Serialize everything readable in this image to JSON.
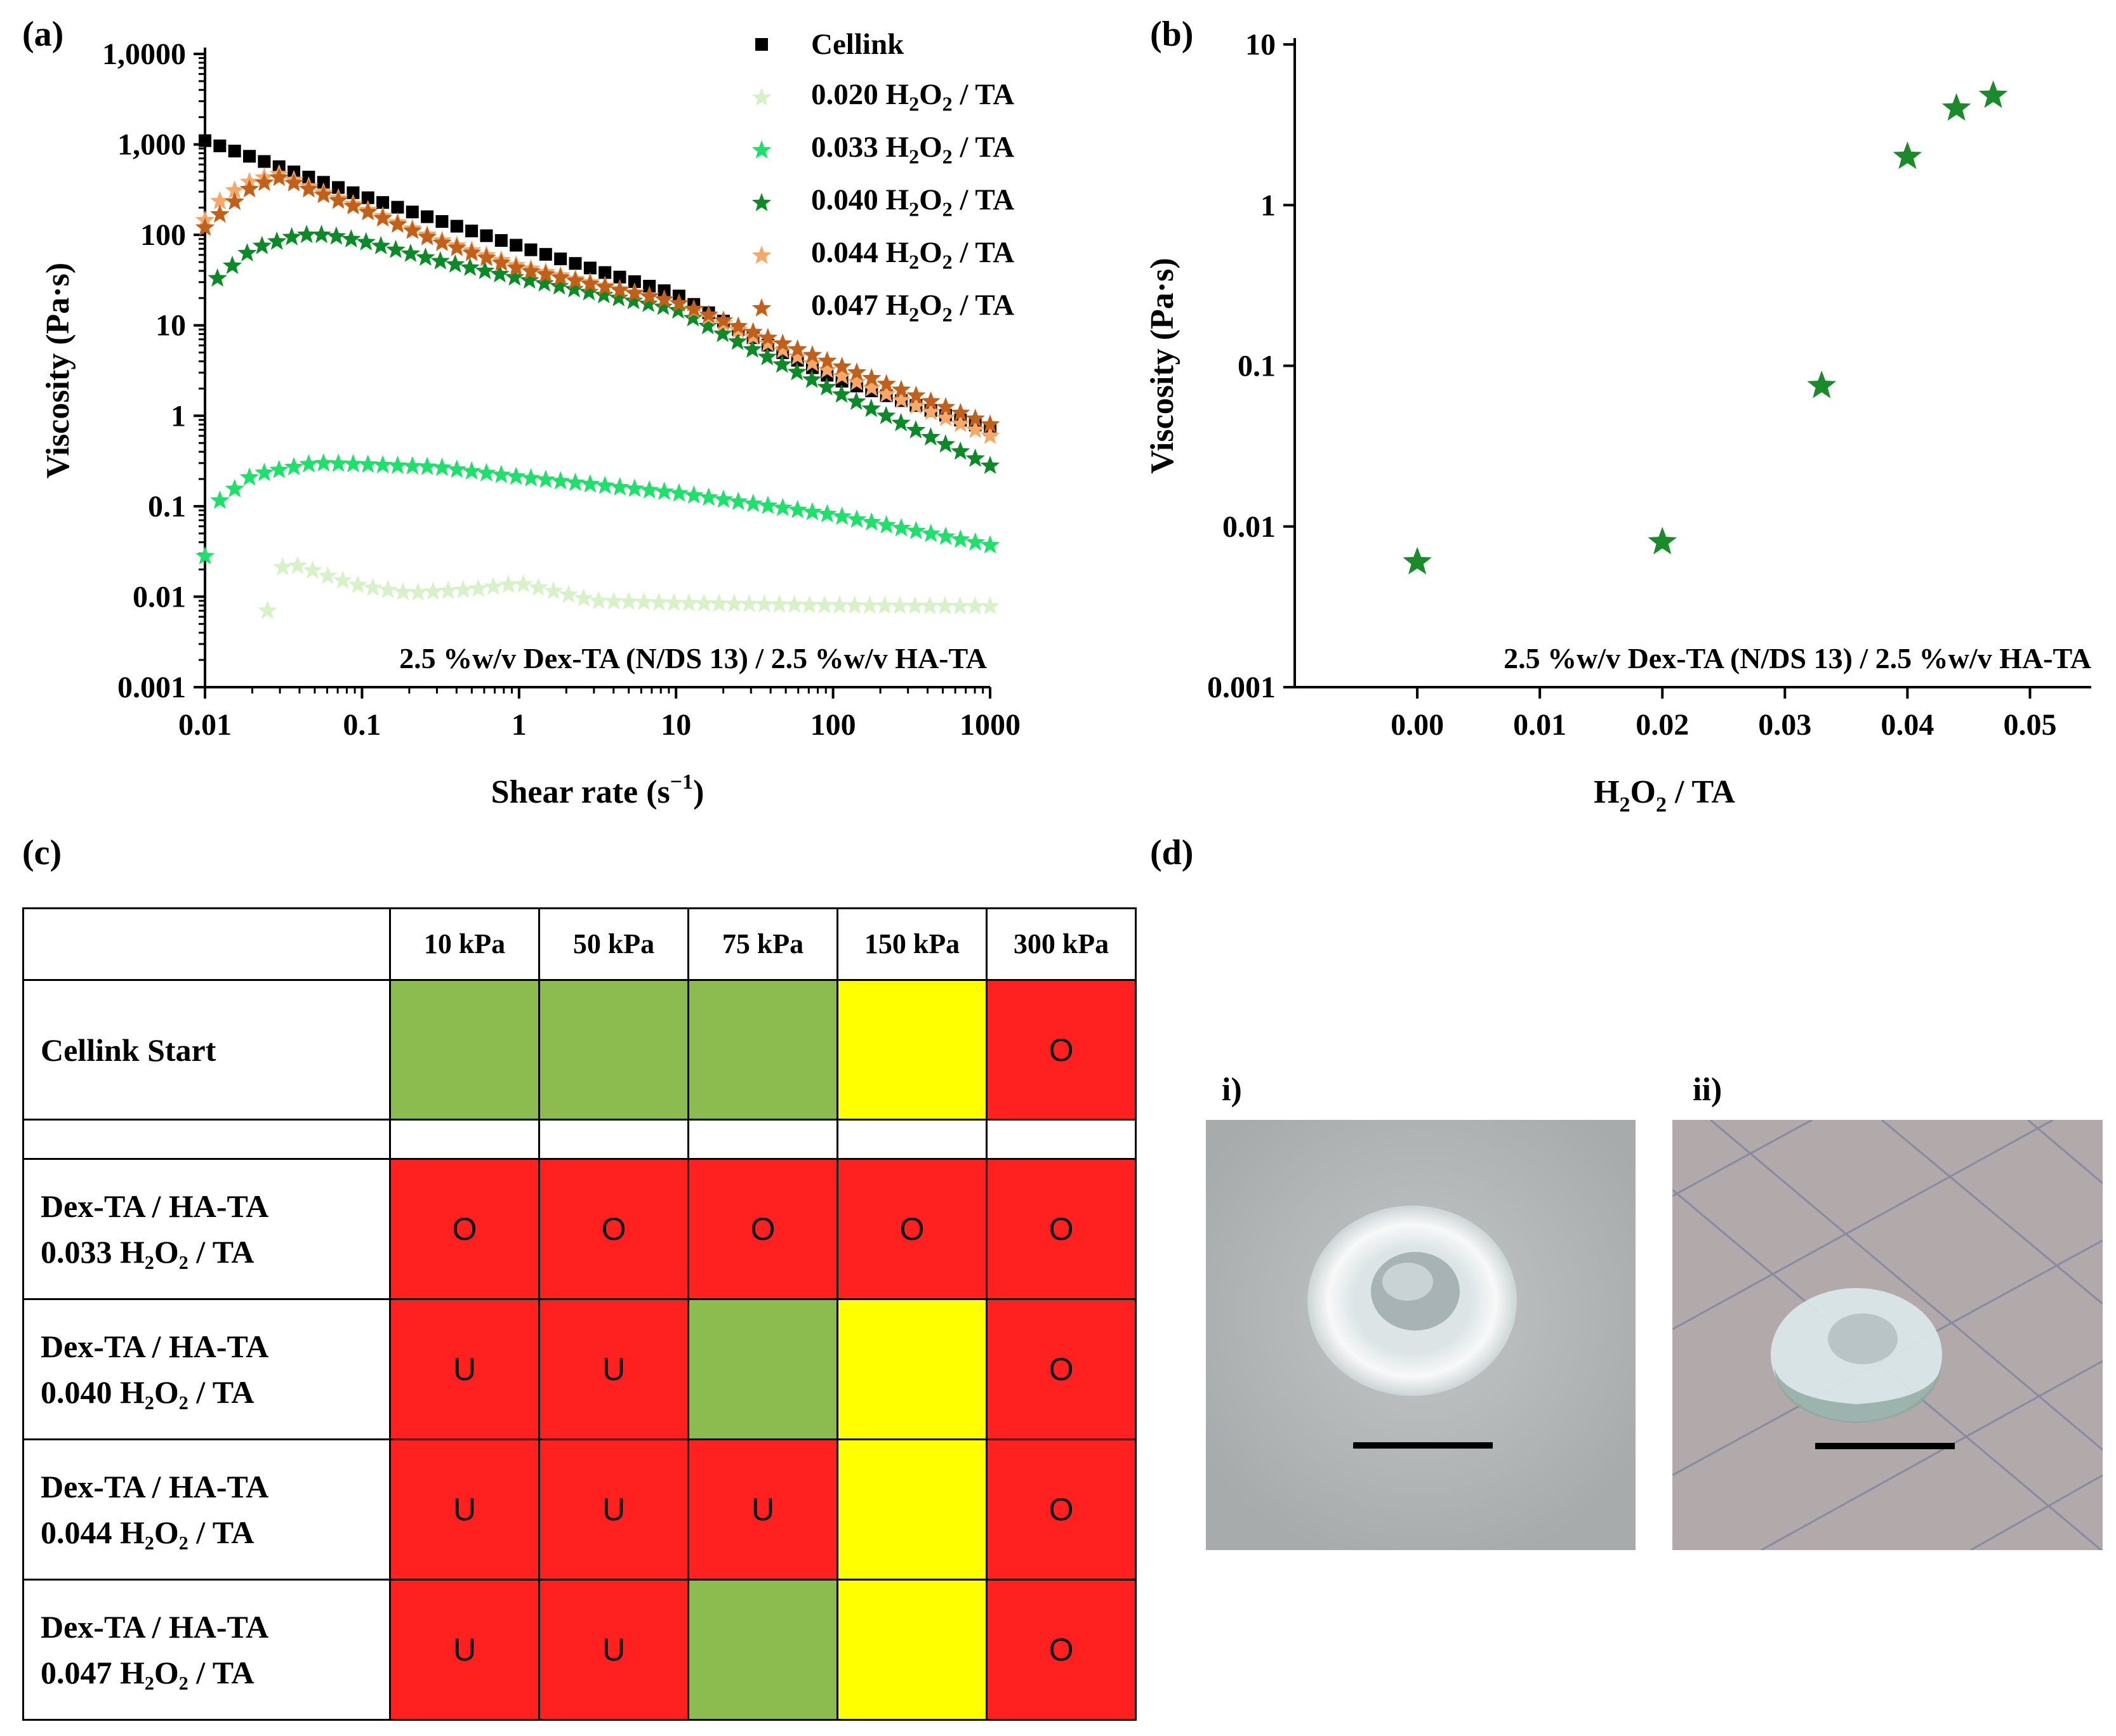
{
  "panels": {
    "a_label": "(a)",
    "b_label": "(b)",
    "c_label": "(c)",
    "d_label": "(d)"
  },
  "chart_data": [
    {
      "type": "scatter",
      "id": "a",
      "xscale": "log",
      "yscale": "log",
      "xlabel": "Shear rate (s⁻¹)",
      "ylabel": "Viscosity (Pa·s)",
      "xlim": [
        0.01,
        1000
      ],
      "ylim": [
        0.001,
        10000
      ],
      "xticks": [
        0.01,
        0.1,
        1,
        10,
        100,
        1000
      ],
      "xtick_labels": [
        "0.01",
        "0.1",
        "1",
        "10",
        "100",
        "1000"
      ],
      "yticks": [
        0.001,
        0.01,
        0.1,
        1,
        10,
        100,
        1000,
        10000
      ],
      "ytick_labels": [
        "0.001",
        "0.01",
        "0.1",
        "1",
        "10",
        "100",
        "1,000",
        "1,0000"
      ],
      "annotation": "2.5 %w/v Dex-TA (N/DS 13) / 2.5 %w/v HA-TA",
      "legend_position": "top-right",
      "series": [
        {
          "name": "Cellink",
          "marker": "square",
          "color": "#000000",
          "points": [
            [
              0.01,
              1100
            ],
            [
              0.1,
              270
            ],
            [
              1,
              75
            ],
            [
              10,
              22
            ],
            [
              30,
              7.5
            ],
            [
              100,
              2.6
            ],
            [
              1000,
              0.7
            ]
          ]
        },
        {
          "name": "0.020 H2O2 / TA",
          "marker": "star",
          "color": "#d8f2c8",
          "points": [
            [
              0.025,
              0.007
            ],
            [
              0.03,
              0.021
            ],
            [
              0.04,
              0.022
            ],
            [
              0.06,
              0.017
            ],
            [
              0.1,
              0.013
            ],
            [
              0.2,
              0.011
            ],
            [
              0.5,
              0.012
            ],
            [
              1,
              0.014
            ],
            [
              1.5,
              0.012
            ],
            [
              3,
              0.009
            ],
            [
              10,
              0.0085
            ],
            [
              100,
              0.008
            ],
            [
              1000,
              0.0078
            ]
          ]
        },
        {
          "name": "0.033 H2O2 / TA",
          "marker": "star",
          "color": "#1fe06a",
          "points": [
            [
              0.01,
              0.028
            ],
            [
              0.012,
              0.11
            ],
            [
              0.02,
              0.22
            ],
            [
              0.05,
              0.3
            ],
            [
              0.1,
              0.29
            ],
            [
              0.3,
              0.27
            ],
            [
              1,
              0.21
            ],
            [
              10,
              0.14
            ],
            [
              100,
              0.08
            ],
            [
              1000,
              0.037
            ]
          ]
        },
        {
          "name": "0.040 H2O2 / TA",
          "marker": "star",
          "color": "#0d8a28",
          "points": [
            [
              0.012,
              33
            ],
            [
              0.02,
              70
            ],
            [
              0.04,
              100
            ],
            [
              0.06,
              100
            ],
            [
              0.1,
              85
            ],
            [
              0.3,
              52
            ],
            [
              1,
              33
            ],
            [
              10,
              15
            ],
            [
              30,
              5.5
            ],
            [
              100,
              1.9
            ],
            [
              1000,
              0.28
            ]
          ]
        },
        {
          "name": "0.044 H2O2 / TA",
          "marker": "star",
          "color": "#f5a868",
          "points": [
            [
              0.01,
              145
            ],
            [
              0.013,
              260
            ],
            [
              0.02,
              400
            ],
            [
              0.03,
              470
            ],
            [
              0.05,
              320
            ],
            [
              0.1,
              200
            ],
            [
              0.3,
              90
            ],
            [
              1,
              45
            ],
            [
              10,
              18
            ],
            [
              100,
              3
            ],
            [
              1000,
              0.6
            ]
          ]
        },
        {
          "name": "0.047 H2O2 / TA",
          "marker": "star",
          "color": "#c0601a",
          "points": [
            [
              0.01,
              120
            ],
            [
              0.013,
              180
            ],
            [
              0.02,
              340
            ],
            [
              0.03,
              430
            ],
            [
              0.05,
              300
            ],
            [
              0.1,
              190
            ],
            [
              0.3,
              85
            ],
            [
              1,
              42
            ],
            [
              10,
              18
            ],
            [
              100,
              3.8
            ],
            [
              1000,
              0.8
            ]
          ]
        }
      ]
    },
    {
      "type": "scatter",
      "id": "b",
      "xscale": "linear",
      "yscale": "log",
      "xlabel": "H2O2 / TA",
      "ylabel": "Viscosity (Pa·s)",
      "xlim": [
        -0.01,
        0.055
      ],
      "ylim": [
        0.001,
        10
      ],
      "xticks": [
        0.0,
        0.01,
        0.02,
        0.03,
        0.04,
        0.05
      ],
      "xtick_labels": [
        "0.00",
        "0.01",
        "0.02",
        "0.03",
        "0.04",
        "0.05"
      ],
      "yticks": [
        0.001,
        0.01,
        0.1,
        1,
        10
      ],
      "ytick_labels": [
        "0.001",
        "0.01",
        "0.1",
        "1",
        "10"
      ],
      "annotation": "2.5 %w/v Dex-TA (N/DS 13) / 2.5 %w/v HA-TA",
      "series": [
        {
          "name": "viscosity",
          "marker": "star",
          "color": "#1a8a2a",
          "points": [
            [
              0.0,
              0.006
            ],
            [
              0.02,
              0.008
            ],
            [
              0.033,
              0.075
            ],
            [
              0.04,
              2.0
            ],
            [
              0.044,
              4.0
            ],
            [
              0.047,
              4.8
            ]
          ]
        }
      ]
    }
  ],
  "legend": {
    "items": [
      {
        "main": "Cellink"
      },
      {
        "main": "0.020 H",
        "s1": "2",
        "mid": "O",
        "s2": "2",
        "tail": " / TA"
      },
      {
        "main": "0.033 H",
        "s1": "2",
        "mid": "O",
        "s2": "2",
        "tail": " / TA"
      },
      {
        "main": "0.040 H",
        "s1": "2",
        "mid": "O",
        "s2": "2",
        "tail": " / TA"
      },
      {
        "main": "0.044 H",
        "s1": "2",
        "mid": "O",
        "s2": "2",
        "tail": " / TA"
      },
      {
        "main": "0.047 H",
        "s1": "2",
        "mid": "O",
        "s2": "2",
        "tail": " / TA"
      }
    ]
  },
  "axis_text": {
    "a_xlabel": "Shear rate (s",
    "a_xlabel_sup": "−1",
    "a_xlabel_end": ")",
    "a_ylabel": "Viscosity (Pa·s)",
    "b_ylabel": "Viscosity (Pa·s)",
    "b_xlabel_h": "H",
    "b_xlabel_s": "2",
    "b_xlabel_o": "O",
    "b_xlabel_end": " / TA"
  },
  "table": {
    "headers": [
      "10 kPa",
      "50 kPa",
      "75 kPa",
      "150 kPa",
      "300 kPa"
    ],
    "colors": {
      "green": "#8cbc4f",
      "yellow": "#ffff00",
      "red": "#ff2020",
      "white": "#ffffff"
    },
    "rows": [
      {
        "line1": "Cellink Start",
        "line2": null,
        "cells": [
          {
            "c": "green",
            "t": ""
          },
          {
            "c": "green",
            "t": ""
          },
          {
            "c": "green",
            "t": ""
          },
          {
            "c": "yellow",
            "t": ""
          },
          {
            "c": "red",
            "t": "O"
          }
        ]
      },
      {
        "line1": "Dex-TA / HA-TA",
        "line2": "0.033 H₂O₂ / TA",
        "cells": [
          {
            "c": "red",
            "t": "O"
          },
          {
            "c": "red",
            "t": "O"
          },
          {
            "c": "red",
            "t": "O"
          },
          {
            "c": "red",
            "t": "O"
          },
          {
            "c": "red",
            "t": "O"
          }
        ]
      },
      {
        "line1": "Dex-TA / HA-TA",
        "line2": "0.040 H₂O₂ / TA",
        "cells": [
          {
            "c": "red",
            "t": "U"
          },
          {
            "c": "red",
            "t": "U"
          },
          {
            "c": "green",
            "t": ""
          },
          {
            "c": "yellow",
            "t": ""
          },
          {
            "c": "red",
            "t": "O"
          }
        ]
      },
      {
        "line1": "Dex-TA / HA-TA",
        "line2": "0.044 H₂O₂ / TA",
        "cells": [
          {
            "c": "red",
            "t": "U"
          },
          {
            "c": "red",
            "t": "U"
          },
          {
            "c": "red",
            "t": "U"
          },
          {
            "c": "yellow",
            "t": ""
          },
          {
            "c": "red",
            "t": "O"
          }
        ]
      },
      {
        "line1": "Dex-TA / HA-TA",
        "line2": "0.047 H₂O₂ / TA",
        "cells": [
          {
            "c": "red",
            "t": "U"
          },
          {
            "c": "red",
            "t": "U"
          },
          {
            "c": "green",
            "t": ""
          },
          {
            "c": "yellow",
            "t": ""
          },
          {
            "c": "red",
            "t": "O"
          }
        ]
      }
    ]
  },
  "photos": {
    "i_label": "i)",
    "ii_label": "ii)"
  }
}
